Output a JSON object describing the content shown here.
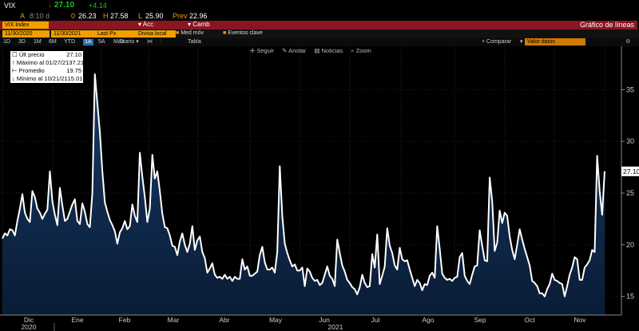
{
  "quote": {
    "ticker": "VIX",
    "last": "27.10",
    "change": "+4.14",
    "row2_a": "A",
    "row2_time": "8:10 d",
    "row2_o": "0",
    "row2_open": "26.23",
    "row2_h": "H",
    "row2_high": "27.58",
    "row2_l": "L",
    "row2_low": "25.90",
    "row2_prev_label": "Prev",
    "row2_prev": "22.96",
    "down_arrow": "down-arrow"
  },
  "header": {
    "index_field": "VIX Index",
    "acc_label": "Acc",
    "camb_label": "Camb",
    "chart_title": "Gráfico de líneas"
  },
  "controls": {
    "start_date": "11/30/2020",
    "end_date": "11/30/2021",
    "field": "Last Px",
    "currency": "Divisa local",
    "med_mov": "Med móv",
    "eventos": "Eventos clave",
    "compare": "+ Comparar",
    "vfavor": "Valor datos"
  },
  "timeframes": [
    "1D",
    "3D",
    "1M",
    "6M",
    "YTD",
    "1A",
    "5A",
    "Máx"
  ],
  "timeframe_selected": "1A",
  "period": "Diario",
  "table_label": "Tabla",
  "toolbar": {
    "follow": "Seguir",
    "annotate": "Anotar",
    "news": "Noticias",
    "zoom": "Zoom"
  },
  "legend": [
    {
      "label": "Últ precio",
      "value": "27.10"
    },
    {
      "label": "Máximo al 01/27/21",
      "value": "37.21"
    },
    {
      "label": "Promedio",
      "value": "19.75"
    },
    {
      "label": "Mínimo al 10/21/21",
      "value": "15.01"
    }
  ],
  "colors": {
    "accent": "#f0a000",
    "header_red": "#8a1622",
    "line": "#ffffff",
    "fill": "#0f2747",
    "up": "#1fc31f",
    "down": "#e02020"
  },
  "chart_data": {
    "type": "area",
    "ylim": [
      13.2,
      39.2
    ],
    "y_ticks": [
      15,
      20,
      25,
      30,
      35
    ],
    "x_month_labels": [
      "Dic",
      "Ene",
      "Feb",
      "Mar",
      "Abr",
      "May",
      "Jun",
      "Jul",
      "Ago",
      "Sep",
      "Oct",
      "Nov"
    ],
    "x_year_labels": [
      "2020",
      "2021"
    ],
    "last_value_label": "27.10",
    "series": [
      {
        "values": [
          20.6,
          21.1,
          20.9,
          21.5,
          21.4,
          20.9,
          22.3,
          23.5,
          24.9,
          23.1,
          22.5,
          22.2,
          25.2,
          24.6,
          23.5,
          23.1,
          22.5,
          23.0,
          23.4,
          27.1,
          24.2,
          22.9,
          21.9,
          25.5,
          23.8,
          22.3,
          22.5,
          23.2,
          23.9,
          24.4,
          22.3,
          22.0,
          24.0,
          23.2,
          22.0,
          21.7,
          25.0,
          36.5,
          33.7,
          30.9,
          27.1,
          24.1,
          23.2,
          22.4,
          21.9,
          21.3,
          20.1,
          21.2,
          21.6,
          22.3,
          21.5,
          21.8,
          23.9,
          22.8,
          22.2,
          28.9,
          26.6,
          24.6,
          22.2,
          23.5,
          28.7,
          26.4,
          27.1,
          25.2,
          23.0,
          21.7,
          21.6,
          20.9,
          19.9,
          19.8,
          19.0,
          20.3,
          21.1,
          20.0,
          19.3,
          20.1,
          21.8,
          19.5,
          20.4,
          20.8,
          19.3,
          18.7,
          17.3,
          17.7,
          18.2,
          17.1,
          16.8,
          16.9,
          16.7,
          17.1,
          16.7,
          16.9,
          16.5,
          16.9,
          16.7,
          16.7,
          18.6,
          17.6,
          17.9,
          17.0,
          17.0,
          17.2,
          17.4,
          19.0,
          19.8,
          18.3,
          17.6,
          17.6,
          17.8,
          17.3,
          19.3,
          27.6,
          22.8,
          20.1,
          19.2,
          18.5,
          17.9,
          18.1,
          17.5,
          17.5,
          17.8,
          16.0,
          17.7,
          17.4,
          16.8,
          16.5,
          16.6,
          16.1,
          16.3,
          17.1,
          17.9,
          17.0,
          16.7,
          16.0,
          20.5,
          19.2,
          18.0,
          17.4,
          16.6,
          16.3,
          15.9,
          15.7,
          15.2,
          15.9,
          17.1,
          16.3,
          15.9,
          16.0,
          19.1,
          17.8,
          21.0,
          16.2,
          17.0,
          17.9,
          21.6,
          19.9,
          19.2,
          18.0,
          17.6,
          19.7,
          18.6,
          18.4,
          18.5,
          17.6,
          16.8,
          16.0,
          16.6,
          16.3,
          15.6,
          16.2,
          16.1,
          17.0,
          17.3,
          16.8,
          21.8,
          19.6,
          17.2,
          16.8,
          16.6,
          16.7,
          16.5,
          16.8,
          16.9,
          18.8,
          19.2,
          17.0,
          16.5,
          16.2,
          17.1,
          17.9,
          18.0,
          21.4,
          19.9,
          18.5,
          18.4,
          26.5,
          24.2,
          19.4,
          20.2,
          23.3,
          22.1,
          23.1,
          22.8,
          20.8,
          19.5,
          18.6,
          20.0,
          21.5,
          20.5,
          19.6,
          18.8,
          18.0,
          16.5,
          16.3,
          16.0,
          15.3,
          15.3,
          15.0,
          15.7,
          16.2,
          17.2,
          16.6,
          16.5,
          16.3,
          16.2,
          15.0,
          16.0,
          17.1,
          17.8,
          18.8,
          18.6,
          16.6,
          16.6,
          17.8,
          18.1,
          18.5,
          19.5,
          19.3,
          28.6,
          25.2,
          22.9,
          27.1
        ]
      }
    ]
  }
}
